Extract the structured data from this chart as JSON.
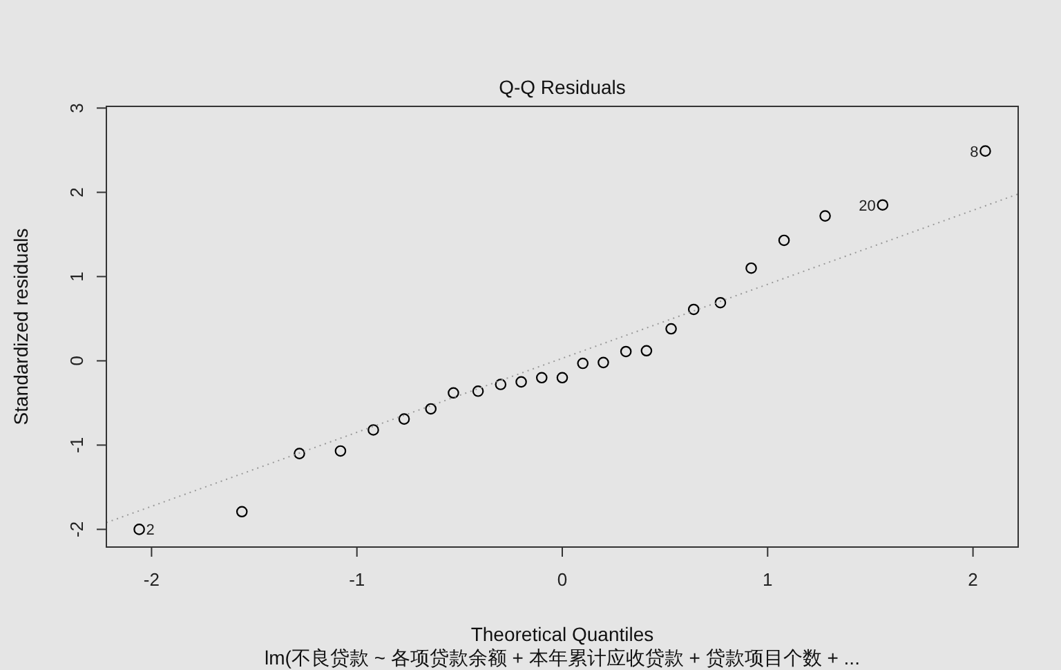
{
  "chart_data": {
    "type": "scatter",
    "title": "Q-Q Residuals",
    "xlabel": "Theoretical Quantiles",
    "ylabel": "Standardized residuals",
    "annotations": [
      {
        "text": "2",
        "x": -2.06,
        "y": -2.0
      },
      {
        "text": "20",
        "x": 1.56,
        "y": 1.85
      },
      {
        "text": "8",
        "x": 2.06,
        "y": 2.49
      },
      "lm(不良贷款 ~ 各项贷款余额 + 本年累计应收贷款 + 贷款项目个数 + ..."
    ],
    "series": [
      {
        "type": "scatter",
        "color": "#000000",
        "marker": "circle",
        "x": [
          -2.06,
          -1.56,
          -1.28,
          -1.08,
          -0.92,
          -0.77,
          -0.64,
          -0.53,
          -0.41,
          -0.3,
          -0.2,
          -0.1,
          0,
          0.1,
          0.2,
          0.31,
          0.41,
          0.53,
          0.64,
          0.77,
          0.92,
          1.08,
          1.28,
          1.56,
          2.06
        ],
        "values": [
          -2.0,
          -1.79,
          -1.1,
          -1.07,
          -0.82,
          -0.69,
          -0.57,
          -0.38,
          -0.36,
          -0.28,
          -0.25,
          -0.2,
          -0.2,
          -0.03,
          -0.02,
          0.11,
          0.12,
          0.38,
          0.61,
          0.69,
          1.1,
          1.43,
          1.72,
          1.85,
          2.49
        ]
      },
      {
        "type": "line",
        "color": "#999999",
        "line_style": "dotted",
        "x": [
          -2.22,
          2.22
        ],
        "values": [
          -1.92,
          1.98
        ]
      }
    ],
    "xlim": [
      -2.22,
      2.22
    ],
    "ylim": [
      -2.21,
      3.02
    ],
    "xticks": [
      -2,
      -1,
      0,
      1,
      2
    ],
    "yticks": [
      -2,
      -1,
      0,
      1,
      2,
      3
    ]
  }
}
